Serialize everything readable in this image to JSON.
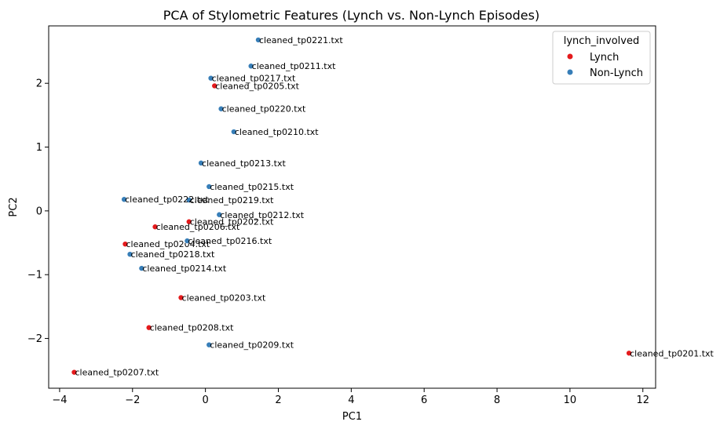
{
  "chart_data": {
    "type": "scatter",
    "title": "PCA of Stylometric Features (Lynch vs. Non-Lynch Episodes)",
    "xlabel": "PC1",
    "ylabel": "PC2",
    "xlim": [
      -4.3,
      12.35
    ],
    "ylim": [
      -2.78,
      2.9
    ],
    "xticks": [
      -4,
      -2,
      0,
      2,
      4,
      6,
      8,
      10,
      12
    ],
    "yticks": [
      -2,
      -1,
      0,
      1,
      2
    ],
    "grid": false,
    "legend": {
      "title": "lynch_involved",
      "position": "top-right",
      "entries": [
        {
          "name": "Lynch",
          "color": "#e41a1c"
        },
        {
          "name": "Non-Lynch",
          "color": "#377eb8"
        }
      ]
    },
    "series": [
      {
        "name": "Lynch",
        "color": "#e41a1c",
        "points": [
          {
            "label": "cleaned_tp0201.txt",
            "x": 11.62,
            "y": -2.23
          },
          {
            "label": "cleaned_tp0202.txt",
            "x": -0.45,
            "y": -0.17
          },
          {
            "label": "cleaned_tp0203.txt",
            "x": -0.67,
            "y": -1.36
          },
          {
            "label": "cleaned_tp0204.txt",
            "x": -2.2,
            "y": -0.52
          },
          {
            "label": "cleaned_tp0205.txt",
            "x": 0.25,
            "y": 1.96
          },
          {
            "label": "cleaned_tp0206.txt",
            "x": -1.38,
            "y": -0.25
          },
          {
            "label": "cleaned_tp0207.txt",
            "x": -3.6,
            "y": -2.53
          },
          {
            "label": "cleaned_tp0208.txt",
            "x": -1.55,
            "y": -1.83
          }
        ]
      },
      {
        "name": "Non-Lynch",
        "color": "#377eb8",
        "points": [
          {
            "label": "cleaned_tp0209.txt",
            "x": 0.1,
            "y": -2.1
          },
          {
            "label": "cleaned_tp0210.txt",
            "x": 0.78,
            "y": 1.24
          },
          {
            "label": "cleaned_tp0211.txt",
            "x": 1.25,
            "y": 2.27
          },
          {
            "label": "cleaned_tp0212.txt",
            "x": 0.38,
            "y": -0.06
          },
          {
            "label": "cleaned_tp0213.txt",
            "x": -0.12,
            "y": 0.75
          },
          {
            "label": "cleaned_tp0214.txt",
            "x": -1.75,
            "y": -0.9
          },
          {
            "label": "cleaned_tp0215.txt",
            "x": 0.1,
            "y": 0.38
          },
          {
            "label": "cleaned_tp0216.txt",
            "x": -0.5,
            "y": -0.47
          },
          {
            "label": "cleaned_tp0217.txt",
            "x": 0.15,
            "y": 2.08
          },
          {
            "label": "cleaned_tp0218.txt",
            "x": -2.07,
            "y": -0.68
          },
          {
            "label": "cleaned_tp0219.txt",
            "x": -0.45,
            "y": 0.17
          },
          {
            "label": "cleaned_tp0220.txt",
            "x": 0.43,
            "y": 1.6
          },
          {
            "label": "cleaned_tp0221.txt",
            "x": 1.45,
            "y": 2.68
          },
          {
            "label": "cleaned_tp0222.txt",
            "x": -2.23,
            "y": 0.18
          }
        ]
      }
    ]
  }
}
